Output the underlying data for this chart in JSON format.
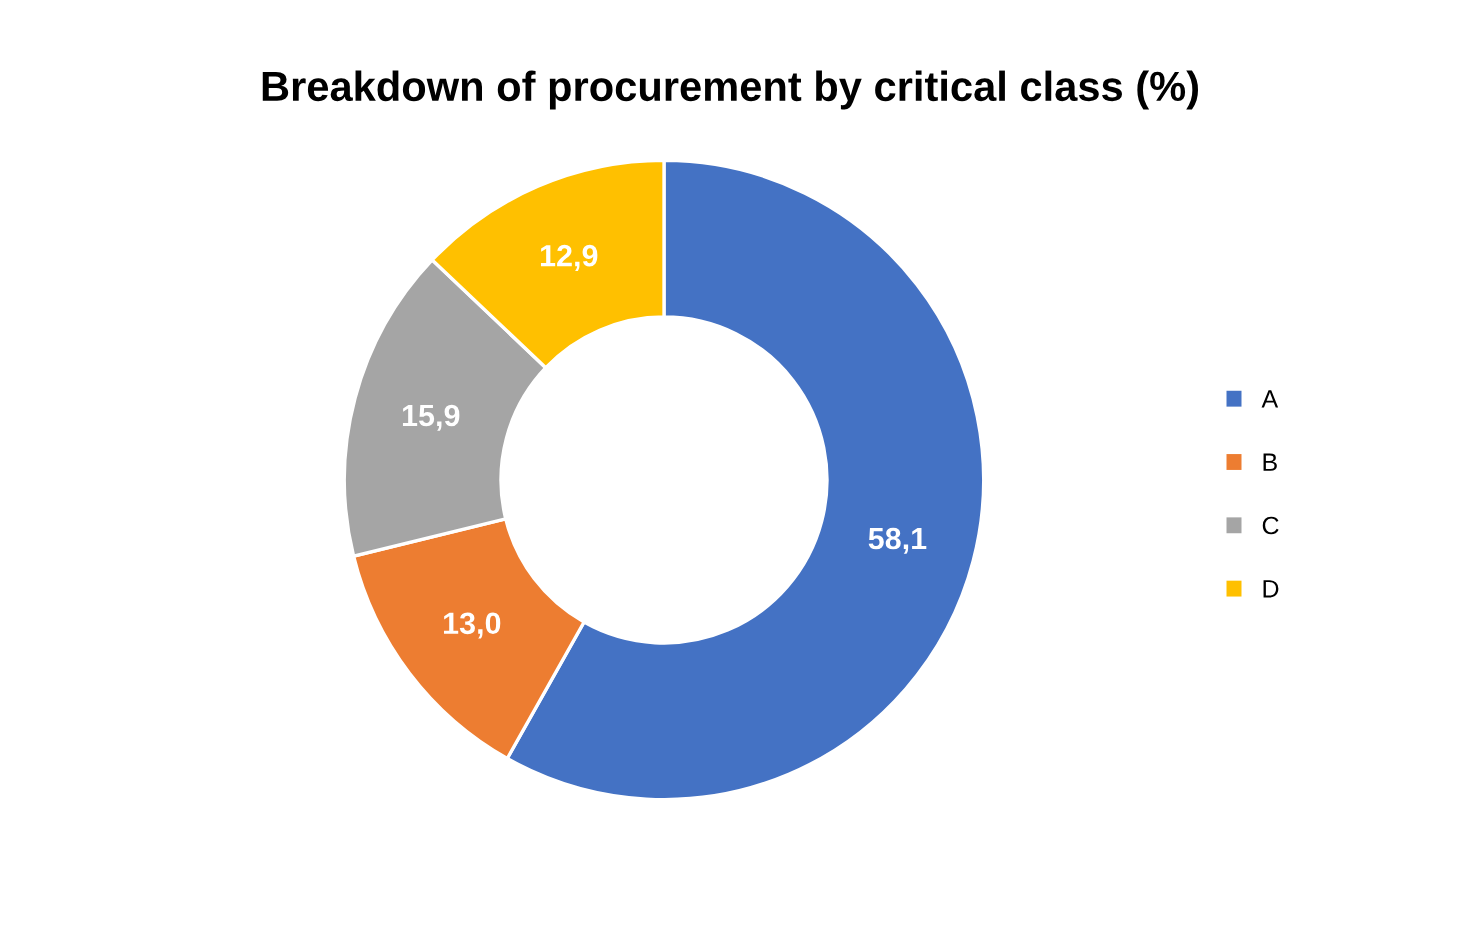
{
  "chart_data": {
    "type": "donut",
    "title": "Breakdown of procurement by critical class (%)",
    "categories": [
      "A",
      "B",
      "C",
      "D"
    ],
    "values": [
      58.1,
      13.0,
      15.9,
      12.9
    ],
    "value_labels": [
      "58,1",
      "13,0",
      "15,9",
      "12,9"
    ],
    "colors": [
      "#4472c4",
      "#ed7d31",
      "#a5a5a5",
      "#ffc000"
    ],
    "legend": "right"
  }
}
